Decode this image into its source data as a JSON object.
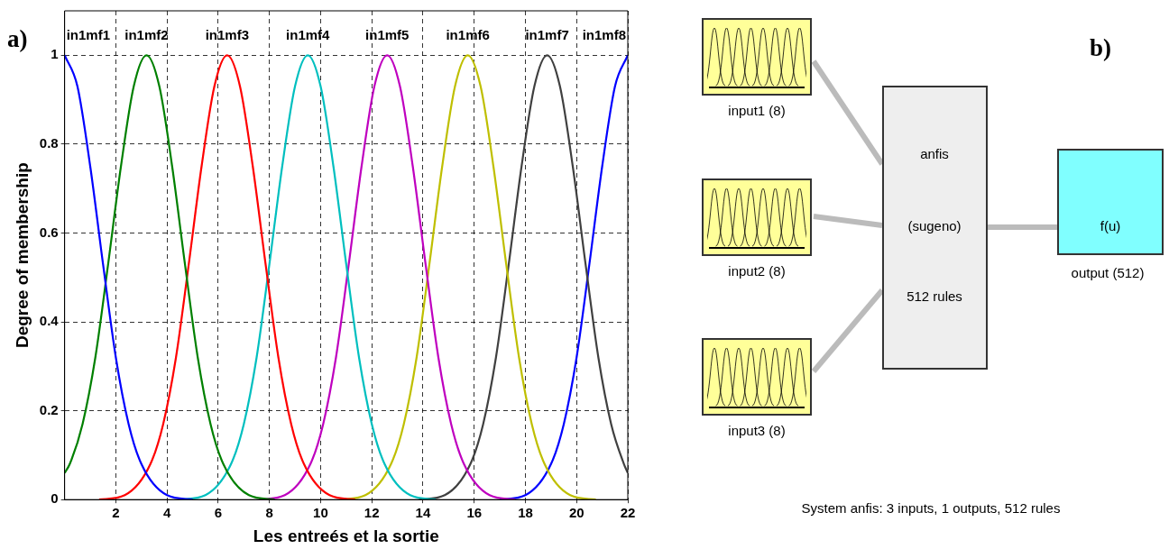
{
  "chart_data": [
    {
      "type": "line",
      "title": "a)",
      "xlabel": "Les entreés et la sortie",
      "ylabel": "Degree of membership",
      "xlim": [
        0,
        22
      ],
      "ylim": [
        0,
        1.1
      ],
      "xticks": [
        2,
        4,
        6,
        8,
        10,
        12,
        14,
        16,
        18,
        20,
        22
      ],
      "yticks": [
        0,
        0.2,
        0.4,
        0.6,
        0.8,
        1
      ],
      "grid": true,
      "series": [
        {
          "name": "in1mf1",
          "color": "#0000ff",
          "x": [
            0,
            0.5,
            1,
            1.5,
            2,
            2.5,
            3,
            4,
            5
          ],
          "values": [
            1,
            0.93,
            0.75,
            0.53,
            0.32,
            0.17,
            0.08,
            0.01,
            0
          ]
        },
        {
          "name": "in1mf2",
          "color": "#008000",
          "x": [
            0,
            0.2,
            0.7,
            1.2,
            1.7,
            2.2,
            2.7,
            3.2,
            3.7,
            4.2,
            4.7,
            5.2,
            5.7,
            6.2,
            7.2,
            8.2
          ],
          "values": [
            0.06,
            0.08,
            0.17,
            0.32,
            0.53,
            0.75,
            0.93,
            1,
            0.93,
            0.75,
            0.53,
            0.32,
            0.17,
            0.08,
            0.01,
            0
          ]
        },
        {
          "name": "in1mf3",
          "color": "#ff0000",
          "x": [
            1.35,
            2.35,
            3.35,
            3.85,
            4.35,
            4.85,
            5.35,
            5.85,
            6.35,
            6.85,
            7.35,
            7.85,
            8.35,
            8.85,
            9.35,
            10.35,
            11.35
          ],
          "values": [
            0,
            0.01,
            0.08,
            0.17,
            0.32,
            0.53,
            0.75,
            0.93,
            1,
            0.93,
            0.75,
            0.53,
            0.32,
            0.17,
            0.08,
            0.01,
            0
          ]
        },
        {
          "name": "in1mf4",
          "color": "#00bfbf",
          "x": [
            4.5,
            5.5,
            6.5,
            7,
            7.5,
            8,
            8.5,
            9,
            9.5,
            10,
            10.5,
            11,
            11.5,
            12,
            12.5,
            13.5,
            14.5
          ],
          "values": [
            0,
            0.01,
            0.08,
            0.17,
            0.32,
            0.53,
            0.75,
            0.93,
            1,
            0.93,
            0.75,
            0.53,
            0.32,
            0.17,
            0.08,
            0.01,
            0
          ]
        },
        {
          "name": "in1mf5",
          "color": "#bf00bf",
          "x": [
            7.6,
            8.6,
            9.6,
            10.1,
            10.6,
            11.1,
            11.6,
            12.1,
            12.6,
            13.1,
            13.6,
            14.1,
            14.6,
            15.1,
            15.6,
            16.6,
            17.6
          ],
          "values": [
            0,
            0.01,
            0.08,
            0.17,
            0.32,
            0.53,
            0.75,
            0.93,
            1,
            0.93,
            0.75,
            0.53,
            0.32,
            0.17,
            0.08,
            0.01,
            0
          ]
        },
        {
          "name": "in1mf6",
          "color": "#bfbf00",
          "x": [
            10.75,
            11.75,
            12.75,
            13.25,
            13.75,
            14.25,
            14.75,
            15.25,
            15.75,
            16.25,
            16.75,
            17.25,
            17.75,
            18.25,
            18.75,
            19.75,
            20.75
          ],
          "values": [
            0,
            0.01,
            0.08,
            0.17,
            0.32,
            0.53,
            0.75,
            0.93,
            1,
            0.93,
            0.75,
            0.53,
            0.32,
            0.17,
            0.08,
            0.01,
            0
          ]
        },
        {
          "name": "in1mf7",
          "color": "#404040",
          "x": [
            13.85,
            14.85,
            15.85,
            16.35,
            16.85,
            17.35,
            17.85,
            18.35,
            18.85,
            19.35,
            19.85,
            20.35,
            20.85,
            21.35,
            21.85,
            22
          ],
          "values": [
            0,
            0.01,
            0.08,
            0.17,
            0.32,
            0.53,
            0.75,
            0.93,
            1,
            0.93,
            0.75,
            0.53,
            0.32,
            0.17,
            0.08,
            0.06
          ]
        },
        {
          "name": "in1mf8",
          "color": "#0000ff",
          "x": [
            17,
            18,
            19,
            19.5,
            20,
            20.5,
            21,
            21.5,
            22
          ],
          "values": [
            0,
            0.01,
            0.08,
            0.17,
            0.32,
            0.53,
            0.75,
            0.93,
            1
          ]
        }
      ]
    },
    {
      "type": "other",
      "title": "b)",
      "annotations": [
        "input1 (8)",
        "input2 (8)",
        "input3 (8)",
        "anfis",
        "(sugeno)",
        "512 rules",
        "f(u)",
        "output (512)",
        "System anfis: 3 inputs, 1 outputs, 512 rules"
      ]
    }
  ]
}
